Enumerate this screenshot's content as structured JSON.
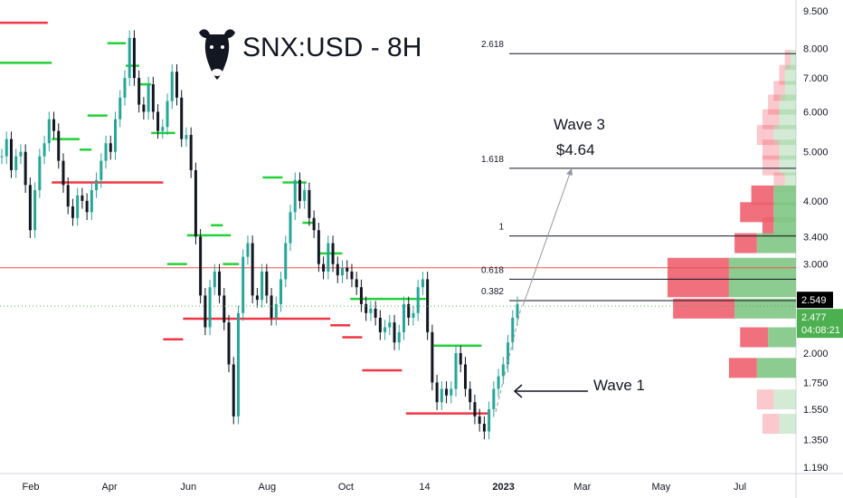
{
  "chart_data": {
    "type": "candlestick",
    "title": "SNX:USD - 8H",
    "y_scale": "log",
    "ylim": [
      1.19,
      9.5
    ],
    "price_ticks": [
      9.5,
      8.0,
      7.0,
      6.0,
      5.0,
      4.0,
      3.4,
      3.0,
      2.0,
      1.75,
      1.55,
      1.35,
      1.19
    ],
    "price_tick_labels": [
      "9.500",
      "8.000",
      "7.000",
      "6.000",
      "5.000",
      "4.000",
      "3.400",
      "3.000",
      "2.000",
      "1.750",
      "1.550",
      "1.350",
      "1.190"
    ],
    "x_labels": [
      "Feb",
      "Apr",
      "Jun",
      "Aug",
      "Oct",
      "14",
      "2023",
      "Mar",
      "May",
      "Jul"
    ],
    "current_price": {
      "value": 2.549,
      "label": "2.549",
      "color": "#000000"
    },
    "last_price": {
      "value": 2.477,
      "label": "2.477",
      "countdown": "04:08:21",
      "color": "#4caf50"
    },
    "reference_line": {
      "value": 2.95,
      "color": "#ef5350"
    },
    "fib_levels": [
      {
        "label": "2.618",
        "value": 7.82
      },
      {
        "label": "1.618",
        "value": 4.64
      },
      {
        "label": "1",
        "value": 3.41
      },
      {
        "label": "0.618",
        "value": 2.8
      },
      {
        "label": "0.382",
        "value": 2.54
      }
    ],
    "annotations": {
      "wave3_label": "Wave 3",
      "wave3_target": "$4.64",
      "wave1_label": "Wave 1"
    },
    "candles_close": [
      4.9,
      5.3,
      4.6,
      4.9,
      5.0,
      4.3,
      3.5,
      4.2,
      4.9,
      5.2,
      5.8,
      5.5,
      4.8,
      4.3,
      3.9,
      3.7,
      4.1,
      4.0,
      3.8,
      4.2,
      4.4,
      4.8,
      5.2,
      5.0,
      5.8,
      6.4,
      7.0,
      8.4,
      7.0,
      6.2,
      6.0,
      6.8,
      6.0,
      5.5,
      5.6,
      6.3,
      7.2,
      6.4,
      5.3,
      5.4,
      4.6,
      3.4,
      2.6,
      2.25,
      2.7,
      2.9,
      2.6,
      2.3,
      1.9,
      1.5,
      2.4,
      3.1,
      3.3,
      2.6,
      2.55,
      2.9,
      2.6,
      2.35,
      2.5,
      2.8,
      3.3,
      3.8,
      4.4,
      4.0,
      4.2,
      3.7,
      3.5,
      3.0,
      2.9,
      3.3,
      3.0,
      2.85,
      2.95,
      2.9,
      2.8,
      2.7,
      2.5,
      2.4,
      2.45,
      2.35,
      2.2,
      2.25,
      2.3,
      2.1,
      2.2,
      2.5,
      2.35,
      2.4,
      2.7,
      2.8,
      2.2,
      1.75,
      1.6,
      1.7,
      1.65,
      1.7,
      2.0,
      1.9,
      1.7,
      1.6,
      1.5,
      1.45,
      1.4,
      1.55,
      1.7,
      1.8,
      1.9,
      2.1,
      2.35,
      2.5
    ],
    "horizontal_levels": [
      {
        "color": "red",
        "y": 9.0,
        "x_start": 0.0,
        "x_end": 0.06
      },
      {
        "color": "green",
        "y": 7.5,
        "x_start": 0.0,
        "x_end": 0.065
      },
      {
        "color": "green",
        "y": 8.2,
        "x_start": 0.135,
        "x_end": 0.158
      },
      {
        "color": "green",
        "y": 7.4,
        "x_start": 0.158,
        "x_end": 0.175
      },
      {
        "color": "green",
        "y": 6.8,
        "x_start": 0.175,
        "x_end": 0.19
      },
      {
        "color": "green",
        "y": 5.3,
        "x_start": 0.065,
        "x_end": 0.1
      },
      {
        "color": "green",
        "y": 5.05,
        "x_start": 0.1,
        "x_end": 0.115
      },
      {
        "color": "green",
        "y": 5.45,
        "x_start": 0.19,
        "x_end": 0.22
      },
      {
        "color": "green",
        "y": 5.9,
        "x_start": 0.11,
        "x_end": 0.135
      },
      {
        "color": "red",
        "y": 4.35,
        "x_start": 0.065,
        "x_end": 0.205
      },
      {
        "color": "green",
        "y": 3.42,
        "x_start": 0.235,
        "x_end": 0.29
      },
      {
        "color": "green",
        "y": 3.0,
        "x_start": 0.21,
        "x_end": 0.235
      },
      {
        "color": "red",
        "y": 2.13,
        "x_start": 0.205,
        "x_end": 0.23
      },
      {
        "color": "red",
        "y": 2.34,
        "x_start": 0.23,
        "x_end": 0.415
      },
      {
        "color": "green",
        "y": 3.58,
        "x_start": 0.265,
        "x_end": 0.28
      },
      {
        "color": "green",
        "y": 3.0,
        "x_start": 0.28,
        "x_end": 0.3
      },
      {
        "color": "green",
        "y": 4.45,
        "x_start": 0.33,
        "x_end": 0.355
      },
      {
        "color": "green",
        "y": 4.35,
        "x_start": 0.355,
        "x_end": 0.385
      },
      {
        "color": "green",
        "y": 3.62,
        "x_start": 0.38,
        "x_end": 0.395
      },
      {
        "color": "green",
        "y": 3.15,
        "x_start": 0.4,
        "x_end": 0.43
      },
      {
        "color": "red",
        "y": 2.27,
        "x_start": 0.415,
        "x_end": 0.44
      },
      {
        "color": "red",
        "y": 2.15,
        "x_start": 0.43,
        "x_end": 0.455
      },
      {
        "color": "green",
        "y": 2.56,
        "x_start": 0.44,
        "x_end": 0.535
      },
      {
        "color": "red",
        "y": 1.85,
        "x_start": 0.455,
        "x_end": 0.505
      },
      {
        "color": "red",
        "y": 1.52,
        "x_start": 0.51,
        "x_end": 0.615
      },
      {
        "color": "green",
        "y": 2.07,
        "x_start": 0.545,
        "x_end": 0.605
      }
    ],
    "volume_profile": [
      {
        "price": 7.6,
        "buy": 1,
        "sell": 1,
        "faded": true
      },
      {
        "price": 7.1,
        "buy": 2,
        "sell": 1,
        "faded": true
      },
      {
        "price": 6.6,
        "buy": 2,
        "sell": 2,
        "faded": true
      },
      {
        "price": 6.2,
        "buy": 3,
        "sell": 2,
        "faded": true
      },
      {
        "price": 5.8,
        "buy": 3,
        "sell": 3,
        "faded": true
      },
      {
        "price": 5.4,
        "buy": 4,
        "sell": 3,
        "faded": true
      },
      {
        "price": 5.05,
        "buy": 3,
        "sell": 3,
        "faded": true
      },
      {
        "price": 4.7,
        "buy": 3,
        "sell": 3,
        "faded": true
      },
      {
        "price": 4.35,
        "buy": 2,
        "sell": 2,
        "faded": true
      },
      {
        "price": 4.1,
        "buy": 4,
        "sell": 4,
        "faded": false
      },
      {
        "price": 3.8,
        "buy": 4,
        "sell": 6,
        "faded": false
      },
      {
        "price": 3.55,
        "buy": 4,
        "sell": 2,
        "faded": false
      },
      {
        "price": 3.3,
        "buy": 7,
        "sell": 4,
        "faded": false
      },
      {
        "price": 2.95,
        "buy": 12,
        "sell": 11,
        "faded": false
      },
      {
        "price": 2.7,
        "buy": 12,
        "sell": 11,
        "faded": false
      },
      {
        "price": 2.45,
        "buy": 11,
        "sell": 11,
        "faded": false
      },
      {
        "price": 2.15,
        "buy": 5,
        "sell": 5,
        "faded": false
      },
      {
        "price": 1.87,
        "buy": 7,
        "sell": 5,
        "faded": false
      },
      {
        "price": 1.62,
        "buy": 4,
        "sell": 3,
        "faded": true
      },
      {
        "price": 1.45,
        "buy": 3,
        "sell": 3,
        "faded": true
      }
    ]
  }
}
